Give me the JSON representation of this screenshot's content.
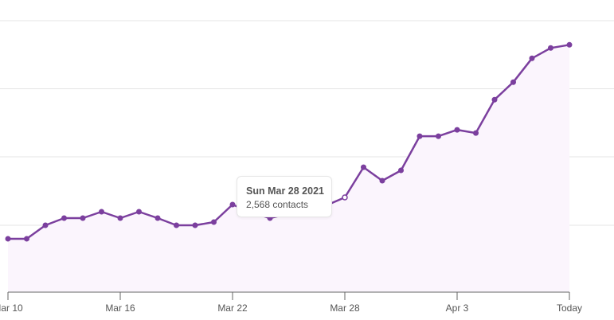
{
  "chart_data": {
    "type": "area",
    "title": "",
    "xlabel": "",
    "ylabel": "",
    "series": [
      {
        "name": "contacts",
        "color": "#7b3f9e",
        "fill": "#fbf5fd",
        "x": [
          "Mar 10",
          "Mar 11",
          "Mar 12",
          "Mar 13",
          "Mar 14",
          "Mar 15",
          "Mar 16",
          "Mar 17",
          "Mar 18",
          "Mar 19",
          "Mar 20",
          "Mar 21",
          "Mar 22",
          "Mar 23",
          "Mar 24",
          "Mar 25",
          "Mar 26",
          "Mar 27",
          "Mar 28",
          "Mar 29",
          "Mar 30",
          "Mar 31",
          "Apr 1",
          "Apr 2",
          "Apr 3",
          "Apr 4",
          "Apr 5",
          "Apr 6",
          "Apr 7",
          "Apr 8",
          "Today"
        ],
        "values": [
          2320,
          2320,
          2401,
          2444,
          2444,
          2482,
          2444,
          2482,
          2444,
          2401,
          2401,
          2420,
          2525,
          2478,
          2444,
          2470,
          2497,
          2520,
          2568,
          2749,
          2668,
          2730,
          2935,
          2935,
          2973,
          2954,
          3154,
          3259,
          3402,
          3464,
          3483
        ]
      }
    ],
    "x_ticks": [
      "Mar 10",
      "Mar 16",
      "Mar 22",
      "Mar 28",
      "Apr 3",
      "Today"
    ],
    "y_gridlines": 4,
    "grid": true,
    "legend": "none",
    "highlighted_point": {
      "index": 18,
      "date": "Sun Mar 28 2021",
      "value": 2568
    }
  },
  "tooltip": {
    "title": "Sun Mar 28 2021",
    "value_label": "2,568 contacts"
  },
  "style": {
    "line_color": "#7b3f9e",
    "fill_color": "#fbf5fd",
    "grid_color": "#e4e4e4",
    "axis_color": "#666666"
  }
}
